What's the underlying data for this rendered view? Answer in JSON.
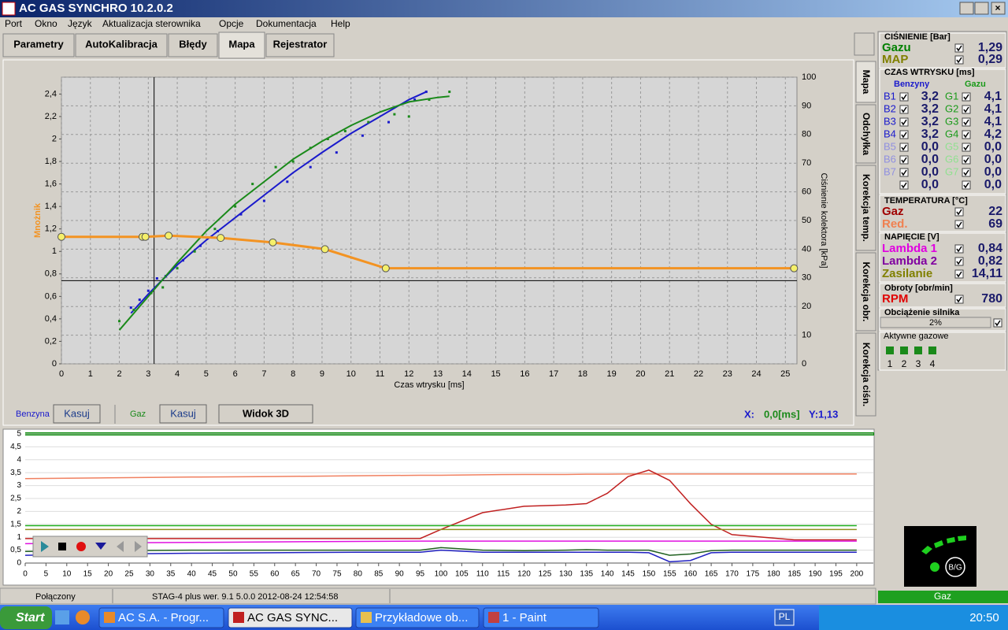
{
  "title_bar": {
    "title": "AC GAS SYNCHRO  10.2.0.2"
  },
  "menu": [
    "Port",
    "Okno",
    "Język",
    "Aktualizacja sterownika",
    "Opcje",
    "Dokumentacja",
    "Help"
  ],
  "tabs": [
    "Parametry",
    "AutoKalibracja",
    "Błędy",
    "Mapa",
    "Rejestrator"
  ],
  "side_tabs": [
    "Mapa",
    "Odchyłka",
    "Korekcja temp.",
    "Korekcja obr.",
    "Korekcja ciśn."
  ],
  "map_chart": {
    "type": "scatter",
    "y_label": "Mnożnik",
    "x_label": "Czas wtrysku [ms]",
    "y2_label": "Ciśnienie kolektora [kPa]",
    "xlim": [
      0,
      25.4
    ],
    "xticks": [
      0,
      1,
      2,
      3,
      4,
      5,
      6,
      7,
      8,
      9,
      10,
      11,
      12,
      13,
      14,
      15,
      16,
      17,
      18,
      19,
      20,
      21,
      22,
      23,
      24,
      25
    ],
    "ylim": [
      0,
      2.55
    ],
    "yticks": [
      0,
      {
        "value": 0.2,
        "label": "0,2"
      },
      {
        "value": 0.4,
        "label": "0,4"
      },
      {
        "value": 0.6,
        "label": "0,6"
      },
      {
        "value": 0.8,
        "label": "0,8"
      },
      1,
      {
        "value": 1.2,
        "label": "1,2"
      },
      {
        "value": 1.4,
        "label": "1,4"
      },
      {
        "value": 1.6,
        "label": "1,6"
      },
      {
        "value": 1.8,
        "label": "1,8"
      },
      2,
      {
        "value": 2.2,
        "label": "2,2"
      },
      {
        "value": 2.4,
        "label": "2,4"
      }
    ],
    "y2lim": [
      0,
      100
    ],
    "y2ticks": [
      0,
      10,
      20,
      30,
      40,
      50,
      60,
      70,
      80,
      90,
      100
    ],
    "grid": true,
    "series": [
      {
        "name": "Benzyna",
        "color": "#1a1acc",
        "x": [
          2.4,
          2.7,
          3.0,
          3.3,
          3.6,
          4.2,
          4.8,
          5.4,
          6.2,
          7.0,
          7.8,
          8.6,
          9.5,
          10.4,
          11.3,
          12.2,
          12.6
        ],
        "values": [
          0.5,
          0.57,
          0.65,
          0.76,
          0.78,
          0.92,
          1.05,
          1.18,
          1.33,
          1.45,
          1.62,
          1.75,
          1.88,
          2.03,
          2.15,
          2.35,
          2.42
        ],
        "curve_x": [
          2.4,
          3,
          4,
          5,
          6,
          7,
          8,
          9,
          10,
          11,
          12,
          12.6
        ],
        "curve_values": [
          0.45,
          0.62,
          0.88,
          1.1,
          1.3,
          1.5,
          1.7,
          1.88,
          2.05,
          2.2,
          2.35,
          2.42
        ]
      },
      {
        "name": "Gaz",
        "color": "#1a8a1a",
        "x": [
          2.0,
          2.5,
          3.1,
          3.5,
          4.0,
          4.6,
          5.3,
          6.0,
          6.6,
          7.4,
          8.0,
          8.6,
          9.2,
          9.8,
          10.6,
          11.5,
          12.0,
          12.7,
          13.4
        ],
        "values": [
          0.38,
          0.48,
          0.63,
          0.68,
          0.85,
          1.0,
          1.2,
          1.4,
          1.6,
          1.75,
          1.8,
          1.92,
          2.0,
          2.07,
          2.15,
          2.22,
          2.2,
          2.35,
          2.42
        ],
        "curve_x": [
          2,
          3,
          4,
          5,
          6,
          7,
          8,
          9,
          10,
          11,
          12,
          13,
          13.4
        ],
        "curve_values": [
          0.3,
          0.6,
          0.9,
          1.18,
          1.42,
          1.62,
          1.82,
          1.98,
          2.12,
          2.24,
          2.33,
          2.37,
          2.38
        ]
      }
    ],
    "multiplier": {
      "color": "#f39322",
      "x": [
        0,
        2.8,
        2.9,
        3.7,
        5.5,
        7.3,
        9.1,
        11.2,
        25.3
      ],
      "values": [
        1.13,
        1.13,
        1.13,
        1.14,
        1.12,
        1.08,
        1.02,
        0.85,
        0.85
      ]
    },
    "cursor": {
      "x": 3.2,
      "y": 0.74
    }
  },
  "map_controls": {
    "benzyna_button": "Kasuj",
    "gaz_button": "Kasuj",
    "view_button": "Widok 3D",
    "readout_x_label": "X:",
    "readout_x": "0,0[ms]",
    "readout_y": "Y:1,13"
  },
  "recorder_chart": {
    "type": "line",
    "xlim": [
      0,
      204
    ],
    "xticks": [
      0,
      5,
      10,
      15,
      20,
      25,
      30,
      35,
      40,
      45,
      50,
      55,
      60,
      65,
      70,
      75,
      80,
      85,
      90,
      95,
      100,
      105,
      110,
      115,
      120,
      125,
      130,
      135,
      140,
      145,
      150,
      155,
      160,
      165,
      170,
      175,
      180,
      185,
      190,
      195,
      200
    ],
    "ylim": [
      0,
      5
    ],
    "yticks": [
      0,
      {
        "value": 0.5,
        "label": "0,5"
      },
      1,
      {
        "value": 1.5,
        "label": "1,5"
      },
      2,
      {
        "value": 2.5,
        "label": "2,5"
      },
      3,
      {
        "value": 3.5,
        "label": "3,5"
      },
      4,
      {
        "value": 4.5,
        "label": "4,5"
      },
      5
    ],
    "grid": true,
    "x": [
      0,
      20,
      40,
      60,
      80,
      95,
      100,
      110,
      120,
      130,
      135,
      140,
      145,
      150,
      155,
      160,
      165,
      170,
      185,
      200
    ],
    "series": [
      {
        "color": "#f08060",
        "values": [
          3.27,
          3.3,
          3.33,
          3.35,
          3.38,
          3.4,
          3.4,
          3.42,
          3.43,
          3.43,
          3.44,
          3.44,
          3.45,
          3.45,
          3.45,
          3.45,
          3.45,
          3.45,
          3.45,
          3.45
        ]
      },
      {
        "color": "#c02020",
        "values": [
          0.95,
          0.95,
          0.95,
          0.95,
          0.95,
          0.95,
          1.3,
          1.95,
          2.2,
          2.25,
          2.3,
          2.7,
          3.35,
          3.6,
          3.2,
          2.3,
          1.5,
          1.1,
          0.9,
          0.9
        ]
      },
      {
        "color": "#20b020",
        "values": [
          1.45,
          1.45,
          1.45,
          1.45,
          1.45,
          1.45,
          1.45,
          1.45,
          1.45,
          1.45,
          1.45,
          1.45,
          1.45,
          1.45,
          1.45,
          1.45,
          1.45,
          1.45,
          1.45,
          1.45
        ]
      },
      {
        "color": "#909020",
        "values": [
          1.3,
          1.3,
          1.3,
          1.3,
          1.3,
          1.3,
          1.3,
          1.3,
          1.3,
          1.3,
          1.3,
          1.3,
          1.3,
          1.3,
          1.3,
          1.3,
          1.3,
          1.3,
          1.3,
          1.3
        ]
      },
      {
        "color": "#e010e0",
        "values": [
          0.75,
          0.78,
          0.8,
          0.82,
          0.84,
          0.85,
          0.85,
          0.85,
          0.85,
          0.85,
          0.85,
          0.85,
          0.85,
          0.85,
          0.85,
          0.85,
          0.85,
          0.85,
          0.85,
          0.85
        ]
      },
      {
        "color": "#206020",
        "values": [
          0.45,
          0.48,
          0.5,
          0.5,
          0.5,
          0.5,
          0.6,
          0.5,
          0.48,
          0.5,
          0.52,
          0.5,
          0.5,
          0.5,
          0.3,
          0.35,
          0.48,
          0.5,
          0.5,
          0.5
        ]
      },
      {
        "color": "#2020c0",
        "values": [
          0.3,
          0.35,
          0.38,
          0.4,
          0.42,
          0.42,
          0.5,
          0.42,
          0.42,
          0.42,
          0.42,
          0.42,
          0.42,
          0.4,
          0.05,
          0.1,
          0.4,
          0.42,
          0.42,
          0.42
        ]
      }
    ]
  },
  "pressure": {
    "title": "CIŚNIENIE [Bar]",
    "rows": [
      {
        "label": "Gazu",
        "value": "1,29",
        "color": "#008000"
      },
      {
        "label": "MAP",
        "value": "0,29",
        "color": "#808000"
      }
    ]
  },
  "injection": {
    "title": "CZAS WTRYSKU  [ms]",
    "head_petrol": "Benzyny",
    "head_gas": "Gazu",
    "rows": [
      {
        "petrol": "B1",
        "petrol_value": "3,2",
        "gas": "G1",
        "gas_value": "4,1"
      },
      {
        "petrol": "B2",
        "petrol_value": "3,2",
        "gas": "G2",
        "gas_value": "4,1"
      },
      {
        "petrol": "B3",
        "petrol_value": "3,2",
        "gas": "G3",
        "gas_value": "4,1"
      },
      {
        "petrol": "B4",
        "petrol_value": "3,2",
        "gas": "G4",
        "gas_value": "4,2"
      },
      {
        "petrol": "B5",
        "petrol_value": "0,0",
        "gas": "G5",
        "gas_value": "0,0"
      },
      {
        "petrol": "B6",
        "petrol_value": "0,0",
        "gas": "G6",
        "gas_value": "0,0"
      },
      {
        "petrol": "B7",
        "petrol_value": "0,0",
        "gas": "G7",
        "gas_value": "0,0"
      },
      {
        "petrol": null,
        "petrol_value": "0,0",
        "gas": null,
        "gas_value": "0,0"
      }
    ]
  },
  "temperature": {
    "title": "TEMPERATURA  [°C]",
    "rows": [
      {
        "label": "Gaz",
        "value": "22",
        "color": "#a00000"
      },
      {
        "label": "Red.",
        "value": "69",
        "color": "#f08050"
      }
    ]
  },
  "voltage": {
    "title": "NAPIĘCIE [V]",
    "rows": [
      {
        "label": "Lambda 1",
        "value": "0,84",
        "color": "#e000e0"
      },
      {
        "label": "Lambda 2",
        "value": "0,82",
        "color": "#8000a0"
      },
      {
        "label": "Zasilanie",
        "value": "14,11",
        "color": "#808000"
      }
    ]
  },
  "rpm": {
    "title": "Obroty [obr/min]",
    "rows": [
      {
        "label": "RPM",
        "value": "780",
        "color": "#e00000"
      }
    ]
  },
  "load": {
    "title": "Obciążenie silnika",
    "value": "2%"
  },
  "injectors": {
    "title": "Aktywne gazowe",
    "labels": [
      "1",
      "2",
      "3",
      "4"
    ]
  },
  "badge": "B/G",
  "mode": "Gaz",
  "status_bar": [
    "Połączony",
    "STAG-4 plus   wer. 9.1  5.0.0    2012-08-24 12:54:58"
  ],
  "taskbar": {
    "start": "Start",
    "items": [
      "AC S.A. - Progr...",
      "AC GAS SYNC...",
      "Przykładowe ob...",
      "1 - Paint"
    ],
    "lang": "PL",
    "clock": "20:50"
  }
}
